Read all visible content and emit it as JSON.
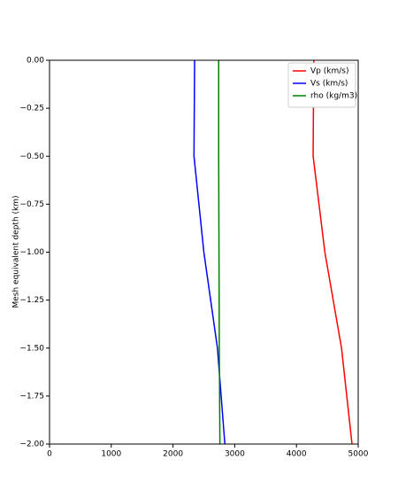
{
  "chart_data": {
    "type": "line",
    "y_label": "Mesh equivalent depth (km)",
    "y": [
      0,
      -0.5,
      -1,
      -1.5,
      -2
    ],
    "series": [
      {
        "name": "Vp (km/s)",
        "color": "#ff0000",
        "values": [
          4280,
          4270,
          4460,
          4730,
          4900
        ]
      },
      {
        "name": "Vs (km/s)",
        "color": "#0000ff",
        "values": [
          2350,
          2340,
          2500,
          2720,
          2840
        ]
      },
      {
        "name": "rho (kg/m3)",
        "color": "#008000",
        "values": [
          2740,
          2740,
          2745,
          2750,
          2760
        ]
      }
    ],
    "xlim": [
      0,
      5000
    ],
    "xticks": [
      0,
      1000,
      2000,
      3000,
      4000,
      5000
    ],
    "ylim": [
      -2,
      0
    ],
    "yticks": [
      {
        "value": 0,
        "label": "0.00"
      },
      {
        "value": -0.25,
        "label": "−0.25"
      },
      {
        "value": -0.5,
        "label": "−0.50"
      },
      {
        "value": -0.75,
        "label": "−0.75"
      },
      {
        "value": -1,
        "label": "−1.00"
      },
      {
        "value": -1.25,
        "label": "−1.25"
      },
      {
        "value": -1.5,
        "label": "−1.50"
      },
      {
        "value": -1.75,
        "label": "−1.75"
      },
      {
        "value": -2,
        "label": "−2.00"
      }
    ],
    "legend": "upper-right"
  }
}
